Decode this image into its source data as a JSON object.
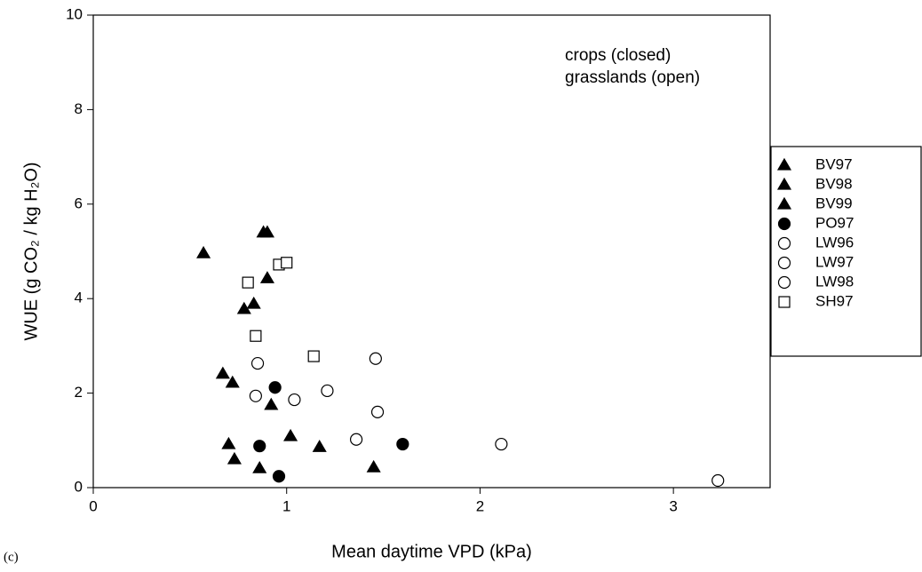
{
  "chart_data": {
    "type": "scatter",
    "panel_label": "(c)",
    "x_label": "Mean daytime VPD (kPa)",
    "y_label": "WUE (g CO₂ / kg H₂O)",
    "annotations": [
      "crops (closed)",
      "grasslands (open)"
    ],
    "xlim": [
      0,
      3.5
    ],
    "xticks": [
      0,
      1,
      2,
      3
    ],
    "ylim": [
      0,
      10
    ],
    "yticks": [
      0,
      2,
      4,
      6,
      8,
      10
    ],
    "grid": false,
    "series": [
      {
        "name": "BV97",
        "marker": "triangle",
        "color": "#000000",
        "filled": true,
        "x": [
          0.57,
          0.88,
          0.9,
          0.83,
          0.78
        ],
        "values": [
          4.96,
          5.4,
          5.4,
          3.89,
          3.78
        ]
      },
      {
        "name": "BV98",
        "marker": "triangle",
        "color": "#000000",
        "filled": true,
        "x": [
          0.9,
          0.67,
          0.72,
          0.92,
          0.7
        ],
        "values": [
          4.43,
          2.41,
          2.22,
          1.75,
          0.92
        ]
      },
      {
        "name": "BV99",
        "marker": "triangle",
        "color": "#000000",
        "filled": true,
        "x": [
          1.02,
          1.17,
          0.73,
          0.86,
          1.45
        ],
        "values": [
          1.09,
          0.86,
          0.6,
          0.41,
          0.43
        ]
      },
      {
        "name": "PO97",
        "marker": "circle",
        "color": "#000000",
        "filled": true,
        "x": [
          0.94,
          0.86,
          0.96,
          1.6
        ],
        "values": [
          2.12,
          0.88,
          0.24,
          0.92
        ]
      },
      {
        "name": "LW96",
        "marker": "circle",
        "color": "#000000",
        "filled": false,
        "x": [
          0.85,
          1.46,
          0.84
        ],
        "values": [
          2.63,
          2.73,
          1.94
        ]
      },
      {
        "name": "LW97",
        "marker": "circle",
        "color": "#000000",
        "filled": false,
        "x": [
          1.04,
          1.21,
          1.47
        ],
        "values": [
          1.86,
          2.05,
          1.6
        ]
      },
      {
        "name": "LW98",
        "marker": "circle",
        "color": "#000000",
        "filled": false,
        "x": [
          1.36,
          2.11,
          3.23
        ],
        "values": [
          1.02,
          0.92,
          0.15
        ]
      },
      {
        "name": "SH97",
        "marker": "square",
        "color": "#000000",
        "filled": false,
        "x": [
          0.8,
          0.96,
          1.0,
          0.84,
          1.14
        ],
        "values": [
          4.34,
          4.72,
          4.76,
          3.21,
          2.78
        ]
      }
    ],
    "legend": "right"
  }
}
